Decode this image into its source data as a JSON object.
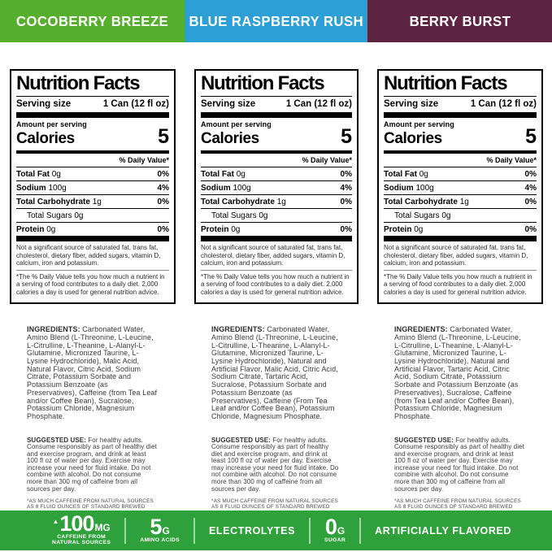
{
  "flavors": [
    {
      "name": "COCOBERRY BREEZE",
      "color": "#56ae2d"
    },
    {
      "name": "BLUE RASPBERRY RUSH",
      "color": "#2b9fd6"
    },
    {
      "name": "BERRY BURST",
      "color": "#5d2342"
    }
  ],
  "nutrition": {
    "title": "Nutrition Facts",
    "serving_size_label": "Serving size",
    "serving_size_value": "1 Can (12 fl oz)",
    "amount_label": "Amount per serving",
    "calories_label": "Calories",
    "calories_value": "5",
    "daily_value_header": "% Daily Value*",
    "rows": [
      {
        "name": "Total Fat",
        "amount": "0g",
        "dv": "0%"
      },
      {
        "name": "Sodium",
        "amount": "100g",
        "dv": "4%"
      },
      {
        "name": "Total Carbohydrate",
        "amount": "1g",
        "dv": "0%"
      },
      {
        "name": "Total Sugars",
        "amount": "0g",
        "dv": ""
      },
      {
        "name": "Protein",
        "amount": "0g",
        "dv": "0%"
      }
    ],
    "not_significant": "Not a significant source of saturated fat, trans fat, cholesterol, dietary fiber, added sugars, vitamin D, calcium, iron and potassium.",
    "dv_footnote": "*The % Daily Value tells you how much a nutrient in a serving of food contributes to a daily diet. 2,000 calories a day is used for general nutrition advice."
  },
  "ingredients_label": "INGREDIENTS:",
  "ingredients_texts": [
    " Carbonated Water, Amino Blend (L-Threonine, L-Leucine, L-Citrulline, L-Theanine, L-Alanyl-L-Glutamine, Micronized Taurine, L-Lysine Hydrochloride), Malic Acid, Natural Flavor, Citric Acid, Sodium Citrate, Potassium Sorbate and Potassium Benzoate (as Preservatives), Caffeine (from Tea Leaf and/or Coffee Bean), Sucralose, Potassium Chloride, Magnesium Phosphate.",
    " Carbonated Water, Amino Blend (L-Threonine, L-Leucine, L-Citrulline, L-Theanine, L-Alanyl-L-Glutamine, Micronized Taurine, L-Lysine Hydrochloride), Natural and Artificial Flavor, Malic Acid, Citric Acid, Sodium Citrate, Tartaric Acid, Sucralose, Potassium Sorbate and Potassium Benzoate (as Preservatives), Caffeine (From Tea Leaf and/or Coffee Bean), Potassium Chloride, Magnesium Phosphate.",
    " Carbonated Water, Amino Blend (L-Threonine, L-Leucine, L-Citrulline, L-Theanine, L-Alanyl-L-Glutamine, Micronized Taurine, L-Lysine Hydrochloride), Natural and Artificial Flavor, Tartaric Acid, Citric Acid, Sodium Citrate, Potassium Sorbate and Potassium Benzoate (as Preservatives), Sucralose, Caffeine (from Tea Leaf and/or Coffee Bean), Potassium Chloride, Magnesium Phosphate."
  ],
  "suggested_use": {
    "label": "SUGGESTED USE:",
    "text": " For healthy adults. Consume responsibly as part of healthy diet and exercise program, and drink at least 100 fl oz of water per day. Exercise may increase your need for fluid intake. Do not combine with alcohol. Do not consume more than 300 mg of caffeine from all sources per day.",
    "footnote": "*AS MUCH CAFFEINE FROM NATURAL SOURCES AS 8 FLUID OUNCES OF STANDARD BREWED COFFEE"
  },
  "banner": {
    "bg_color": "#2fa13a",
    "caffeine": {
      "mark": "▲",
      "value": "100",
      "unit": "MG",
      "label_line1": "CAFFEINE FROM",
      "label_line2": "NATURAL SOURCES"
    },
    "amino": {
      "value": "5",
      "unit": "G",
      "label": "AMINO ACIDS"
    },
    "electrolytes": "ELECTROLYTES",
    "sugar": {
      "value": "0",
      "unit": "G",
      "label": "SUGAR"
    },
    "flavored": "ARTIFICIALLY FLAVORED"
  }
}
